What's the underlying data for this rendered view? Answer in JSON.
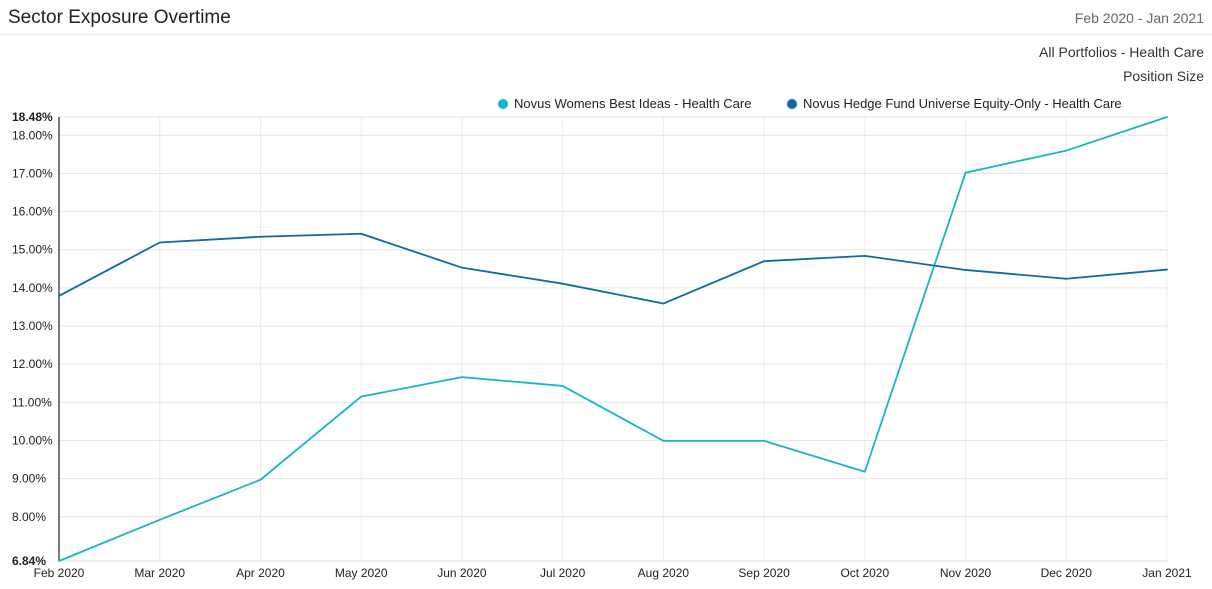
{
  "header": {
    "title": "Sector Exposure Overtime",
    "date_range": "Feb 2020 - Jan 2021"
  },
  "subtitle": {
    "portfolio": "All Portfolios - Health Care",
    "metric": "Position Size"
  },
  "chart_data": {
    "type": "line",
    "categories": [
      "Feb 2020",
      "Mar 2020",
      "Apr 2020",
      "May 2020",
      "Jun 2020",
      "Jul 2020",
      "Aug 2020",
      "Sep 2020",
      "Oct 2020",
      "Nov 2020",
      "Dec 2020",
      "Jan 2021"
    ],
    "series": [
      {
        "name": "Novus Womens Best Ideas - Health Care",
        "color": "#17b5c8",
        "values": [
          6.84,
          7.92,
          8.97,
          11.15,
          11.66,
          11.43,
          9.99,
          9.99,
          9.18,
          17.02,
          17.6,
          18.48
        ]
      },
      {
        "name": "Novus Hedge Fund Universe Equity-Only - Health Care",
        "color": "#0e6aa0",
        "values": [
          13.79,
          15.19,
          15.34,
          15.42,
          14.53,
          14.11,
          13.59,
          14.7,
          14.84,
          14.47,
          14.24,
          14.48
        ]
      }
    ],
    "ylim": [
      6.84,
      18.48
    ],
    "y_ticks": [
      "6.84%",
      "8.00%",
      "9.00%",
      "10.00%",
      "11.00%",
      "12.00%",
      "13.00%",
      "14.00%",
      "15.00%",
      "16.00%",
      "17.00%",
      "18.00%",
      "18.48%"
    ],
    "y_tick_values": [
      6.84,
      8,
      9,
      10,
      11,
      12,
      13,
      14,
      15,
      16,
      17,
      18,
      18.48
    ],
    "grid": true,
    "legend_position": "top-right"
  }
}
